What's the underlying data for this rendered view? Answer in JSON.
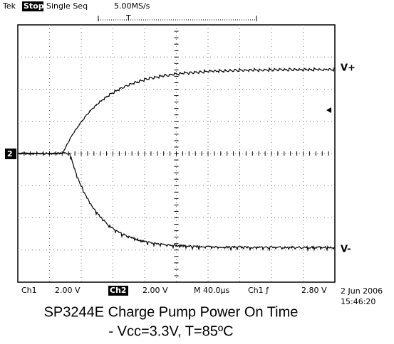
{
  "header": {
    "brand": "Tek",
    "state": "Stop:",
    "mode": "Single Seq",
    "rate": "5.00MS/s",
    "trigger_marker": "T"
  },
  "channel_marker": "2",
  "traces": {
    "upper": "V+",
    "lower": "V-"
  },
  "footer": {
    "ch1": "Ch1",
    "ch1_scale": "2.00 V",
    "ch2": "Ch2",
    "ch2_scale": "2.00 V",
    "timebase": "M 40.0µs",
    "trigger_source": "Ch1 ƒ",
    "trigger_level": "2.80 V",
    "date": "2 Jun 2006",
    "time": "15:46:20"
  },
  "caption": {
    "line1": "SP3244E Charge Pump Power On Time",
    "line2": "- Vcc=3.3V, T=85ºC"
  }
}
